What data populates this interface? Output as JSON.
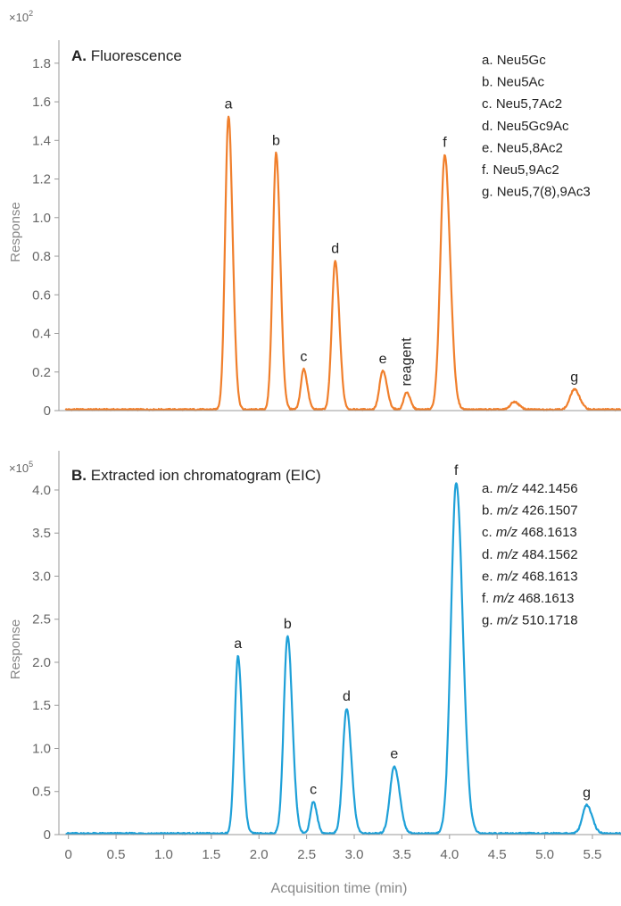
{
  "chart_data": [
    {
      "type": "line",
      "title_prefix": "A.",
      "title": "Fluorescence",
      "ylabel": "Response",
      "multiplier": "×10",
      "multiplier_exp": "2",
      "ylim": [
        0,
        1.85
      ],
      "yticks": [
        "0",
        "0.2",
        "0.4",
        "0.6",
        "0.8",
        "1.0",
        "1.2",
        "1.4",
        "1.6",
        "1.8"
      ],
      "color": "#f07f2c",
      "grid": false,
      "peaks": [
        {
          "label": "a",
          "x": 1.68,
          "y": 1.52,
          "w": 0.035
        },
        {
          "label": "b",
          "x": 2.18,
          "y": 1.33,
          "w": 0.035
        },
        {
          "label": "c",
          "x": 2.47,
          "y": 0.21,
          "w": 0.03
        },
        {
          "label": "d",
          "x": 2.8,
          "y": 0.77,
          "w": 0.035
        },
        {
          "label": "e",
          "x": 3.3,
          "y": 0.2,
          "w": 0.035
        },
        {
          "label": "reagent",
          "x": 3.55,
          "y": 0.09,
          "w": 0.03,
          "rotate": true
        },
        {
          "label": "f",
          "x": 3.95,
          "y": 1.32,
          "w": 0.045
        },
        {
          "label": "",
          "x": 4.68,
          "y": 0.04,
          "w": 0.04
        },
        {
          "label": "g",
          "x": 5.31,
          "y": 0.105,
          "w": 0.045
        }
      ],
      "legend": [
        {
          "letter": "a.",
          "text": "Neu5Gc"
        },
        {
          "letter": "b.",
          "text": "Neu5Ac"
        },
        {
          "letter": "c.",
          "text": "Neu5,7Ac2"
        },
        {
          "letter": "d.",
          "text": "Neu5Gc9Ac"
        },
        {
          "letter": "e.",
          "text": "Neu5,8Ac2"
        },
        {
          "letter": "f.",
          "text": "Neu5,9Ac2"
        },
        {
          "letter": "g.",
          "text": "Neu5,7(8),9Ac3"
        }
      ]
    },
    {
      "type": "line",
      "title_prefix": "B.",
      "title": "Extracted ion chromatogram (EIC)",
      "ylabel": "Response",
      "multiplier": "×10",
      "multiplier_exp": "5",
      "ylim": [
        0,
        4.3
      ],
      "yticks": [
        "0",
        "0.5",
        "1.0",
        "1.5",
        "2.0",
        "2.5",
        "3.0",
        "3.5",
        "4.0"
      ],
      "color": "#1ea0d8",
      "grid": false,
      "peaks": [
        {
          "label": "a",
          "x": 1.78,
          "y": 2.06,
          "w": 0.035
        },
        {
          "label": "b",
          "x": 2.3,
          "y": 2.29,
          "w": 0.04
        },
        {
          "label": "c",
          "x": 2.57,
          "y": 0.37,
          "w": 0.03
        },
        {
          "label": "d",
          "x": 2.92,
          "y": 1.45,
          "w": 0.04
        },
        {
          "label": "e",
          "x": 3.42,
          "y": 0.78,
          "w": 0.045
        },
        {
          "label": "f",
          "x": 4.07,
          "y": 4.07,
          "w": 0.055
        },
        {
          "label": "g",
          "x": 5.44,
          "y": 0.33,
          "w": 0.045
        }
      ],
      "legend": [
        {
          "letter": "a.",
          "mz": "m/z",
          "text": "442.1456"
        },
        {
          "letter": "b.",
          "mz": "m/z",
          "text": "426.1507"
        },
        {
          "letter": "c.",
          "mz": "m/z",
          "text": "468.1613"
        },
        {
          "letter": "d.",
          "mz": "m/z",
          "text": "484.1562"
        },
        {
          "letter": "e.",
          "mz": "m/z",
          "text": "468.1613"
        },
        {
          "letter": "f.",
          "mz": "m/z",
          "text": "468.1613"
        },
        {
          "letter": "g.",
          "mz": "m/z",
          "text": "510.1718"
        }
      ],
      "xlabel": "Acquisition time (min)",
      "xlim": [
        -0.1,
        5.8
      ],
      "xticks": [
        "0",
        "0.5",
        "1.0",
        "1.5",
        "2.0",
        "2.5",
        "3.0",
        "3.5",
        "4.0",
        "4.5",
        "5.0",
        "5.5"
      ]
    }
  ]
}
